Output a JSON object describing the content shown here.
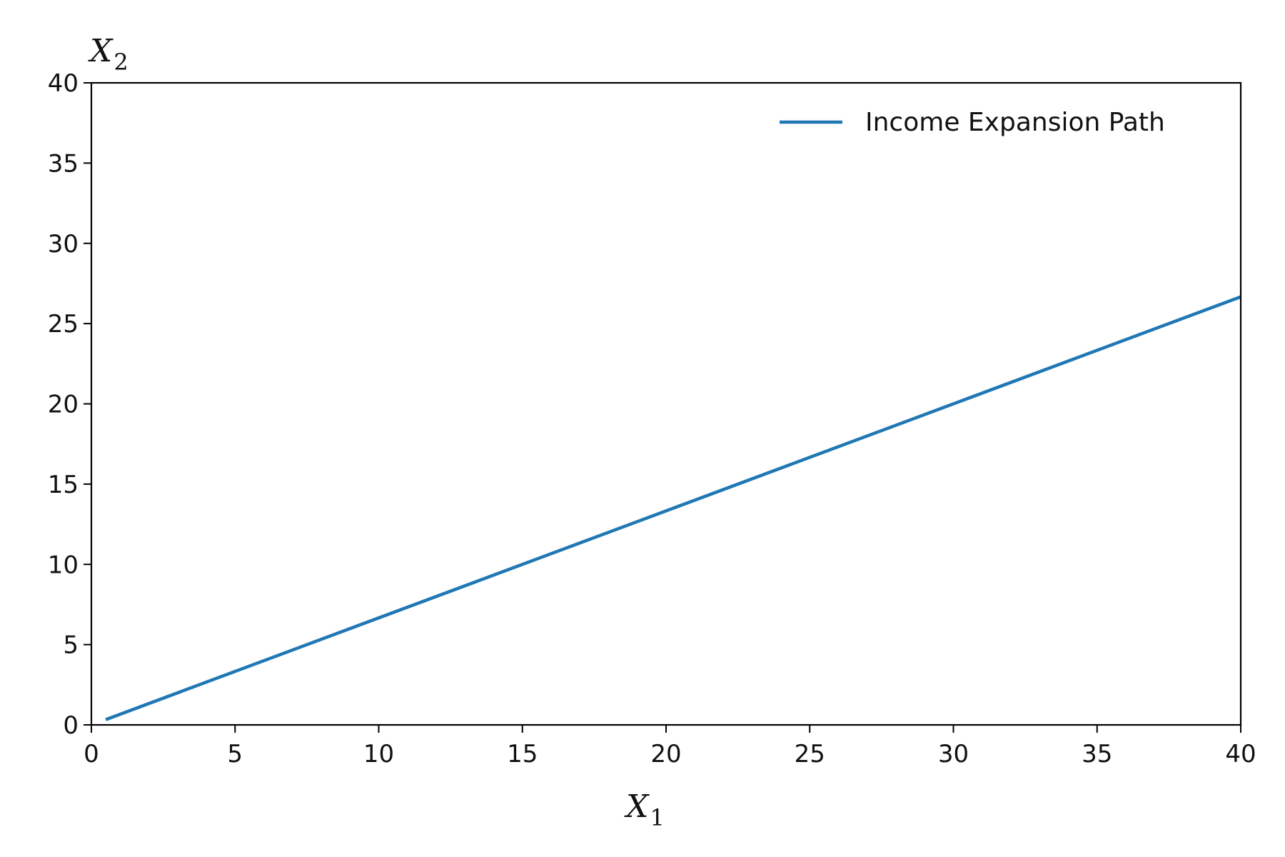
{
  "chart_data": {
    "type": "line",
    "xlabel": "X",
    "xlabel_sub": "1",
    "ylabel": "X",
    "ylabel_sub": "2",
    "xlim": [
      0,
      40
    ],
    "ylim": [
      0,
      40
    ],
    "xticks": [
      0,
      5,
      10,
      15,
      20,
      25,
      30,
      35,
      40
    ],
    "yticks": [
      0,
      5,
      10,
      15,
      20,
      25,
      30,
      35,
      40
    ],
    "grid": false,
    "legend_position": "top-right",
    "series": [
      {
        "name": "Income Expansion Path",
        "color": "#1f77b4",
        "x": [
          0.5,
          40
        ],
        "y": [
          0.33,
          26.67
        ]
      }
    ]
  }
}
